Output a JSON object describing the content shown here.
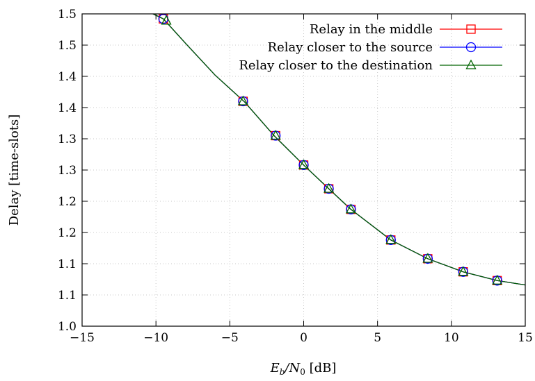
{
  "chart_data": {
    "type": "line",
    "xlabel": "E_b/N_0 [dB]",
    "xlabel_parts": {
      "e": "E",
      "b": "b",
      "slash": "/N",
      "zero": "0",
      "unit": " [dB]"
    },
    "ylabel": "Delay [time-slots]",
    "xlim": [
      -15,
      15
    ],
    "ylim": [
      1.0,
      1.5
    ],
    "x_ticks": [
      {
        "value": -15,
        "label": "−15"
      },
      {
        "value": -10,
        "label": "−10"
      },
      {
        "value": -5,
        "label": "−5"
      },
      {
        "value": 0,
        "label": "0"
      },
      {
        "value": 5,
        "label": "5"
      },
      {
        "value": 10,
        "label": "10"
      },
      {
        "value": 15,
        "label": "15"
      }
    ],
    "y_ticks": [
      {
        "value": 1.0,
        "label": "1.0"
      },
      {
        "value": 1.05,
        "label": "1.1"
      },
      {
        "value": 1.1,
        "label": "1.1"
      },
      {
        "value": 1.15,
        "label": "1.2"
      },
      {
        "value": 1.2,
        "label": "1.2"
      },
      {
        "value": 1.25,
        "label": "1.3"
      },
      {
        "value": 1.3,
        "label": "1.3"
      },
      {
        "value": 1.35,
        "label": "1.4"
      },
      {
        "value": 1.4,
        "label": "1.4"
      },
      {
        "value": 1.45,
        "label": "1.5"
      }
    ],
    "grid": true,
    "legend_position": "top-right",
    "curve": {
      "x": [
        -10.2,
        -9.5,
        -8,
        -6,
        -4,
        -2,
        0,
        1.7,
        3.2,
        5.9,
        8.4,
        10.8,
        13.1,
        15
      ],
      "y": [
        1.5,
        1.492,
        1.453,
        1.402,
        1.359,
        1.305,
        1.258,
        1.22,
        1.187,
        1.138,
        1.108,
        1.087,
        1.073,
        1.066
      ]
    },
    "series": [
      {
        "name": "Relay in the middle",
        "color": "#ff0000",
        "marker": "square",
        "x": [
          -9.5,
          -4.1,
          -1.9,
          0,
          1.7,
          3.2,
          5.9,
          8.4,
          10.8,
          13.1
        ],
        "y": [
          1.492,
          1.36,
          1.305,
          1.258,
          1.22,
          1.187,
          1.138,
          1.108,
          1.087,
          1.073
        ]
      },
      {
        "name": "Relay closer to the source",
        "color": "#0000ff",
        "marker": "circle",
        "x": [
          -9.5,
          -4.1,
          -1.9,
          0,
          1.7,
          3.2,
          5.9,
          8.4,
          10.8,
          13.1
        ],
        "y": [
          1.492,
          1.36,
          1.305,
          1.258,
          1.22,
          1.187,
          1.138,
          1.108,
          1.087,
          1.073
        ]
      },
      {
        "name": "Relay closer to the destination",
        "color": "#006400",
        "marker": "triangle",
        "x": [
          -9.3,
          -4.1,
          -1.9,
          0,
          1.7,
          3.2,
          5.9,
          8.4,
          10.8,
          13.1
        ],
        "y": [
          1.489,
          1.36,
          1.305,
          1.258,
          1.22,
          1.187,
          1.138,
          1.108,
          1.087,
          1.073
        ]
      }
    ]
  }
}
